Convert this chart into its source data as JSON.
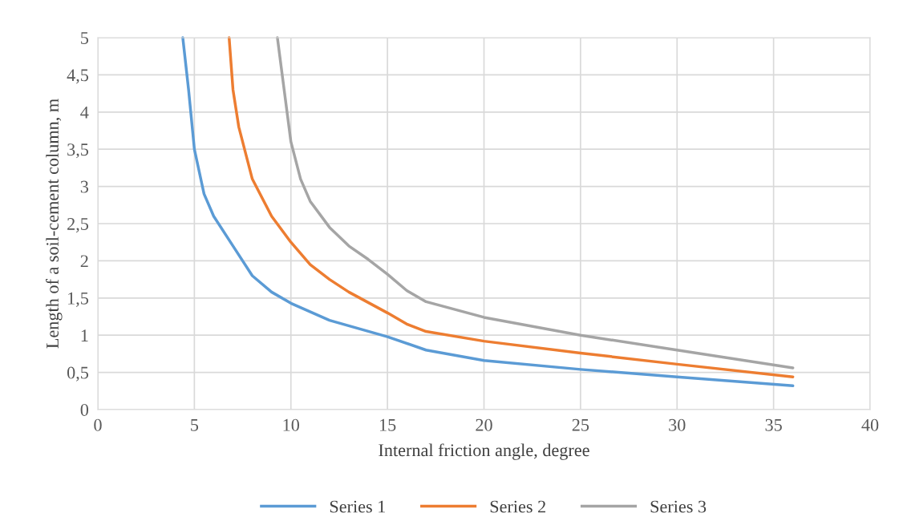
{
  "chart_data": {
    "type": "line",
    "xlabel": "Internal friction angle, degree",
    "ylabel": "Length of a soil-cement column, m",
    "xlim": [
      0,
      40
    ],
    "xticks": [
      0,
      5,
      10,
      15,
      20,
      25,
      30,
      35,
      40
    ],
    "ylim": [
      0,
      5
    ],
    "yticks": [
      0,
      {
        "value": 0.5,
        "label": "0,5"
      },
      1,
      {
        "value": 1.5,
        "label": "1,5"
      },
      2,
      {
        "value": 2.5,
        "label": "2,5"
      },
      3,
      {
        "value": 3.5,
        "label": "3,5"
      },
      4,
      {
        "value": 4.5,
        "label": "4,5"
      },
      5
    ],
    "grid": true,
    "legend": "bottom",
    "marker": "none",
    "line_style": "solid",
    "series": [
      {
        "name": "Series 1",
        "color": "#5b9bd5",
        "x": [
          4.4,
          4.7,
          5,
          5.5,
          6,
          7,
          8,
          9,
          10,
          12,
          15,
          17,
          20,
          25,
          30,
          36
        ],
        "values": [
          5,
          4.3,
          3.5,
          2.9,
          2.6,
          2.2,
          1.8,
          1.58,
          1.43,
          1.2,
          0.98,
          0.8,
          0.66,
          0.54,
          0.44,
          0.32
        ]
      },
      {
        "name": "Series 2",
        "color": "#ed7d31",
        "x": [
          6.8,
          7,
          7.3,
          8,
          9,
          10,
          11,
          12,
          13,
          15,
          16,
          17,
          20,
          25,
          30,
          36
        ],
        "values": [
          5,
          4.3,
          3.8,
          3.1,
          2.6,
          2.25,
          1.95,
          1.75,
          1.58,
          1.3,
          1.15,
          1.05,
          0.92,
          0.76,
          0.61,
          0.44
        ]
      },
      {
        "name": "Series 3",
        "color": "#a5a5a5",
        "x": [
          9.3,
          9.6,
          10,
          10.5,
          11,
          12,
          13,
          14,
          15,
          16,
          17,
          20,
          25,
          30,
          36
        ],
        "values": [
          5,
          4.4,
          3.6,
          3.1,
          2.8,
          2.45,
          2.2,
          2.02,
          1.82,
          1.6,
          1.45,
          1.24,
          1.0,
          0.8,
          0.56
        ]
      }
    ]
  }
}
